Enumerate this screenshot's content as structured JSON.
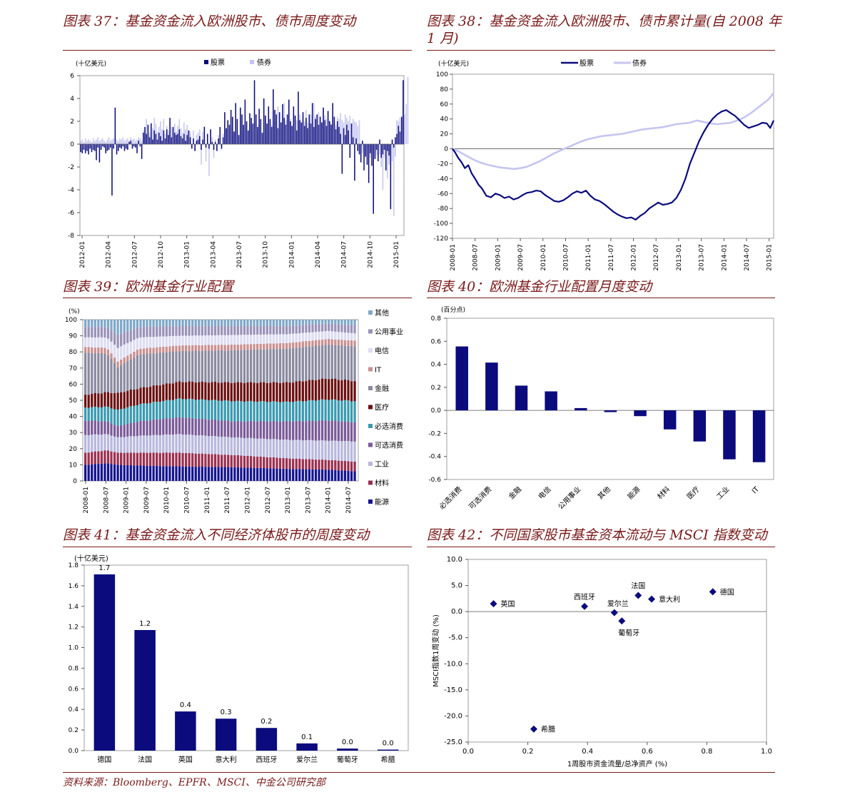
{
  "source": "资料来源：Bloomberg、EPFR、MSCI、中金公司研究部",
  "colors": {
    "navy": "#0b0b7e",
    "lavender": "#c5c5f0",
    "title": "#7a1a1a"
  },
  "chart_data": [
    {
      "id": "c37",
      "type": "bar",
      "title": "图表 37：基金资金流入欧洲股市、债市周度变动",
      "ylabel": "(十亿美元)",
      "ylim": [
        -8,
        6
      ],
      "yticks": [
        -8,
        -6,
        -4,
        -2,
        0,
        2,
        4,
        6
      ],
      "xticks": [
        "2012-01",
        "2012-04",
        "2012-07",
        "2012-10",
        "2013-01",
        "2013-04",
        "2013-07",
        "2013-10",
        "2014-01",
        "2014-04",
        "2014-07",
        "2014-10",
        "2015-01"
      ],
      "legend": [
        "股票",
        "债券"
      ],
      "series": [
        {
          "name": "股票",
          "values": [
            -0.7,
            -0.8,
            -0.5,
            -0.8,
            -0.6,
            -0.9,
            -0.4,
            -0.7,
            -0.5,
            -0.6,
            -1.4,
            -0.3,
            -1.6,
            -0.5,
            -0.2,
            -0.3,
            -0.8,
            -0.6,
            -0.5,
            -0.3,
            -4.5,
            -0.4,
            3.2,
            -0.9,
            -0.6,
            -0.3,
            -0.4,
            -0.2,
            -0.6,
            -0.4,
            -0.5,
            0.2,
            0.3,
            -0.4,
            -0.2,
            -0.3,
            -0.8,
            0.3,
            -0.2,
            -1.3,
            1.0,
            1.5,
            0.9,
            1.7,
            0.6,
            1.8,
            0.4,
            1.2,
            0.9,
            0.4,
            1.0,
            0.7,
            0.3,
            1.2,
            0.5,
            1.3,
            0.8,
            2.3,
            0.6,
            1.5,
            1.0,
            0.8,
            0.9,
            1.3,
            0.7,
            0.5,
            0.9,
            0.3,
            0.8,
            1.2,
            0.6,
            -0.4,
            0.5,
            -0.6,
            0.3,
            0.4,
            0.7,
            -0.5,
            0.4,
            1.5,
            -0.3,
            0.9,
            -0.4,
            1.3,
            0.2,
            -0.5,
            0.2,
            -0.6,
            0.5,
            1.5,
            -0.4,
            0.6,
            2.8,
            1.4,
            2.1,
            1.7,
            3.0,
            2.4,
            1.1,
            3.6,
            2.2,
            0.8,
            3.2,
            2.6,
            1.7,
            3.9,
            2.0,
            1.2,
            2.7,
            2.3,
            1.8,
            5.6,
            2.6,
            1.5,
            3.1,
            2.2,
            1.0,
            4.0,
            2.5,
            1.8,
            3.3,
            2.2,
            1.5,
            4.8,
            3.0,
            2.6,
            1.4,
            2.8,
            1.9,
            3.5,
            2.3,
            1.7,
            2.6,
            3.9,
            2.0,
            1.6,
            3.3,
            2.5,
            1.2,
            4.6,
            2.1,
            1.9,
            2.8,
            1.6,
            2.3,
            1.4,
            2.6,
            1.8,
            3.6,
            1.5,
            2.2,
            2.6,
            1.7,
            2.4,
            1.9,
            3.2,
            2.1,
            1.6,
            2.9,
            2.0,
            1.7,
            3.6,
            2.4,
            1.3,
            2.0,
            1.5,
            0.9,
            -2.6,
            1.4,
            0.8,
            1.7,
            1.2,
            -1.2,
            1.8,
            0.6,
            -3.2,
            0.5,
            -0.6,
            -0.9,
            -1.6,
            0.3,
            -2.3,
            -1.1,
            -1.8,
            -3.4,
            -0.8,
            -1.9,
            -6.1,
            -1.3,
            -0.5,
            -1.5,
            0.4,
            -1.2,
            -0.9,
            -0.5,
            -2.3,
            -0.6,
            -1.0,
            -5.7,
            0.4,
            -0.3,
            0.6,
            0.9,
            1.6,
            1.1,
            2.4,
            5.6
          ]
        },
        {
          "name": "债券",
          "values": [
            0.3,
            0.4,
            0.2,
            0.5,
            0.3,
            0.4,
            0.3,
            0.2,
            0.5,
            0.3,
            0.4,
            0.6,
            0.3,
            0.4,
            0.5,
            0.3,
            0.2,
            0.4,
            0.6,
            0.3,
            0.4,
            0.5,
            0.7,
            0.4,
            0.3,
            0.5,
            0.4,
            0.6,
            0.3,
            0.4,
            0.5,
            0.3,
            0.6,
            0.4,
            0.5,
            0.3,
            0.4,
            0.6,
            0.5,
            0.3,
            1.2,
            0.9,
            2.2,
            1.6,
            1.0,
            1.9,
            1.4,
            2.3,
            1.8,
            1.1,
            1.5,
            2.0,
            1.3,
            2.2,
            0.9,
            1.6,
            1.2,
            2.0,
            1.5,
            1.3,
            1.8,
            1.1,
            1.6,
            2.2,
            1.4,
            1.0,
            1.9,
            1.3,
            1.7,
            1.2,
            1.1,
            -0.3,
            1.2,
            -0.6,
            0.8,
            1.0,
            1.3,
            -1.8,
            1.1,
            1.6,
            -1.5,
            0.9,
            -2.8,
            1.2,
            0.6,
            -1.2,
            0.4,
            -0.6,
            0.8,
            1.4,
            -0.5,
            0.9,
            1.7,
            1.3,
            1.6,
            1.2,
            1.4,
            0.8,
            1.1,
            2.1,
            1.3,
            0.6,
            1.8,
            1.2,
            1.0,
            1.5,
            1.2,
            0.8,
            1.6,
            1.3,
            1.1,
            1.9,
            1.5,
            1.2,
            1.7,
            1.3,
            0.9,
            1.8,
            1.4,
            1.1,
            1.5,
            1.2,
            1.7,
            2.8,
            2.0,
            1.5,
            3.3,
            1.8,
            1.4,
            2.5,
            3.6,
            2.1,
            1.9,
            3.1,
            2.2,
            1.6,
            2.7,
            2.4,
            2.1,
            2.0,
            2.6,
            1.8,
            2.4,
            2.0,
            3.0,
            1.9,
            2.3,
            2.6,
            2.0,
            3.6,
            2.4,
            2.1,
            2.8,
            2.3,
            1.9,
            3.2,
            2.5,
            2.2,
            2.9,
            2.1,
            1.8,
            2.5,
            2.0,
            1.7,
            2.4,
            2.2,
            2.7,
            2.1,
            1.9,
            2.6,
            2.3,
            2.0,
            2.5,
            1.8,
            2.2,
            2.0,
            1.9,
            1.6,
            2.1,
            -0.6,
            -0.8,
            -0.5,
            -1.0,
            -0.3,
            -0.9,
            -1.2,
            -0.6,
            -1.4,
            -0.8,
            -1.0,
            -0.5,
            -0.9,
            -2.0,
            -4.0,
            -1.2,
            -0.9,
            -3.0,
            -1.8,
            -1.0,
            -1.5,
            -6.3,
            -1.1,
            2.1,
            2.0,
            2.3,
            1.5,
            2.2,
            2.6,
            3.5,
            5.9
          ]
        }
      ]
    },
    {
      "id": "c38",
      "type": "line",
      "title": "图表 38：基金资金流入欧洲股市、债市累计量(自 2008 年 1 月)",
      "ylabel": "(十亿美元)",
      "ylim": [
        -120,
        100
      ],
      "yticks": [
        -120,
        -100,
        -80,
        -60,
        -40,
        -20,
        0,
        20,
        40,
        60,
        80,
        100
      ],
      "xticks": [
        "2008-01",
        "2008-07",
        "2009-01",
        "2009-07",
        "2010-01",
        "2010-07",
        "2011-01",
        "2011-07",
        "2012-01",
        "2012-07",
        "2013-01",
        "2013-07",
        "2014-01",
        "2014-07",
        "2015-01"
      ],
      "legend": [
        "股票",
        "债券"
      ],
      "series": [
        {
          "name": "股票",
          "x": [
            0,
            0.12,
            0.25,
            0.4,
            0.55,
            0.7,
            0.85,
            1.0,
            1.15,
            1.3,
            1.5,
            1.7,
            1.9,
            2.1,
            2.3,
            2.5,
            2.7,
            2.9,
            3.1,
            3.3,
            3.5,
            3.7,
            3.9,
            4.1,
            4.3,
            4.5,
            4.7,
            4.9,
            5.1,
            5.3,
            5.5,
            5.7,
            5.9,
            6.1,
            6.3,
            6.5,
            6.7,
            6.9,
            7.1,
            7.3,
            7.5,
            7.7,
            7.9,
            8.1,
            8.3,
            8.5,
            8.7,
            8.9,
            9.1,
            9.3,
            9.5,
            9.7,
            9.9,
            10.1,
            10.3,
            10.5,
            10.7,
            10.9,
            11.1,
            11.3,
            11.5,
            11.7,
            11.9,
            12.1,
            12.3,
            12.5,
            12.7,
            12.9,
            13.1,
            13.3,
            13.5,
            13.7,
            13.9,
            14.05,
            14.2
          ],
          "values": [
            0,
            -5,
            -12,
            -18,
            -26,
            -22,
            -33,
            -40,
            -48,
            -53,
            -63,
            -65,
            -60,
            -62,
            -66,
            -64,
            -68,
            -66,
            -62,
            -59,
            -58,
            -56,
            -57,
            -62,
            -66,
            -70,
            -71,
            -69,
            -65,
            -60,
            -57,
            -59,
            -56,
            -63,
            -68,
            -70,
            -74,
            -79,
            -84,
            -88,
            -91,
            -93,
            -92,
            -95,
            -90,
            -86,
            -80,
            -76,
            -72,
            -75,
            -74,
            -72,
            -66,
            -55,
            -40,
            -20,
            -5,
            10,
            22,
            32,
            40,
            46,
            50,
            52,
            48,
            44,
            38,
            32,
            28,
            30,
            32,
            35,
            34,
            28,
            38
          ]
        },
        {
          "name": "债券",
          "x": [
            0,
            0.3,
            0.6,
            0.9,
            1.2,
            1.5,
            1.8,
            2.1,
            2.4,
            2.7,
            3.0,
            3.3,
            3.6,
            3.9,
            4.2,
            4.5,
            4.8,
            5.1,
            5.4,
            5.7,
            6.0,
            6.3,
            6.6,
            6.9,
            7.2,
            7.5,
            7.8,
            8.1,
            8.4,
            8.7,
            9.0,
            9.3,
            9.6,
            9.9,
            10.2,
            10.5,
            10.8,
            11.1,
            11.4,
            11.7,
            12.0,
            12.3,
            12.6,
            12.9,
            13.2,
            13.5,
            13.8,
            14.0,
            14.2
          ],
          "values": [
            0,
            -4,
            -9,
            -14,
            -18,
            -21,
            -23,
            -25,
            -26,
            -27,
            -26,
            -24,
            -20,
            -16,
            -11,
            -6,
            -2,
            2,
            6,
            10,
            13,
            15,
            17,
            18,
            19,
            20,
            22,
            24,
            26,
            27,
            28,
            29,
            31,
            33,
            34,
            35,
            38,
            36,
            34,
            33,
            34,
            35,
            38,
            42,
            48,
            55,
            62,
            67,
            75
          ]
        }
      ]
    },
    {
      "id": "c39",
      "type": "area",
      "title": "图表 39：欧洲基金行业配置",
      "ylabel": "(%)",
      "ylim": [
        0,
        100
      ],
      "yticks": [
        0,
        10,
        20,
        30,
        40,
        50,
        60,
        70,
        80,
        90,
        100
      ],
      "xticks": [
        "2008-01",
        "2008-07",
        "2009-01",
        "2009-07",
        "2010-01",
        "2010-07",
        "2011-01",
        "2011-07",
        "2012-01",
        "2012-07",
        "2013-01",
        "2013-07",
        "2014-01",
        "2014-07"
      ],
      "legend": [
        "其他",
        "公用事业",
        "电信",
        "IT",
        "金融",
        "医疗",
        "必选消费",
        "可选消费",
        "工业",
        "材料",
        "能源"
      ],
      "series_colors": [
        "#7fa8c8",
        "#9a92b8",
        "#dcdcf2",
        "#c99090",
        "#8a8aa0",
        "#6b1010",
        "#3a9ab0",
        "#7a5a98",
        "#b8b8de",
        "#9a3050",
        "#141490"
      ],
      "stack_order_bottom_up": [
        "能源",
        "材料",
        "工业",
        "可选消费",
        "必选消费",
        "医疗",
        "金融",
        "IT",
        "电信",
        "公用事业",
        "其他"
      ],
      "anchors": {
        "t": [
          0,
          0.08,
          0.12,
          0.2,
          0.35,
          0.55,
          0.75,
          0.9,
          1.0
        ],
        "能源": [
          10,
          11,
          10,
          9.5,
          9,
          8.5,
          7.5,
          7,
          6
        ],
        "材料": [
          7.5,
          8,
          7.5,
          8,
          8.5,
          7.5,
          6.5,
          6,
          6
        ],
        "工业": [
          11,
          10,
          9.5,
          10.5,
          11.5,
          11,
          11.5,
          12,
          12.5
        ],
        "可选消费": [
          9,
          8,
          7,
          9,
          10.5,
          10,
          11.5,
          12.5,
          12
        ],
        "必选消费": [
          8,
          9,
          10,
          10.5,
          11.5,
          12.5,
          12,
          13,
          13
        ],
        "医疗": [
          8,
          9,
          10.5,
          10,
          10.5,
          11.5,
          12,
          13,
          12.5
        ],
        "金融": [
          26,
          24,
          16,
          21,
          19,
          20,
          21,
          21,
          21.5
        ],
        "IT": [
          3.5,
          3.5,
          3.5,
          3.5,
          3.5,
          3.5,
          3.5,
          3.5,
          3.5
        ],
        "电信": [
          6,
          6.5,
          8.5,
          7,
          6,
          6,
          5.5,
          5,
          4.5
        ],
        "公用事业": [
          6.5,
          6.5,
          8,
          6.5,
          6,
          5.5,
          5,
          4.5,
          5
        ],
        "其他": [
          4.5,
          4.5,
          9.5,
          4.5,
          4,
          4,
          4,
          2.5,
          3.5
        ]
      }
    },
    {
      "id": "c40",
      "type": "bar",
      "title": "图表 40：欧洲基金行业配置月度变动",
      "ylabel": "(百分点)",
      "ylim": [
        -0.6,
        0.8
      ],
      "yticks": [
        -0.6,
        -0.4,
        -0.2,
        0.0,
        0.2,
        0.4,
        0.6,
        0.8
      ],
      "categories": [
        "必选消费",
        "可选消费",
        "金融",
        "电信",
        "公用事业",
        "其他",
        "能源",
        "材料",
        "医疗",
        "工业",
        "IT"
      ],
      "values": [
        0.555,
        0.415,
        0.215,
        0.165,
        0.02,
        -0.015,
        -0.05,
        -0.165,
        -0.27,
        -0.425,
        -0.45
      ]
    },
    {
      "id": "c41",
      "type": "bar",
      "title": "图表 41：基金资金流入不同经济体股市的周度变动",
      "ylabel": "(十亿美元)",
      "ylim": [
        0,
        1.8
      ],
      "yticks": [
        0.0,
        0.2,
        0.4,
        0.6,
        0.8,
        1.0,
        1.2,
        1.4,
        1.6,
        1.8
      ],
      "categories": [
        "德国",
        "法国",
        "英国",
        "意大利",
        "西班牙",
        "爱尔兰",
        "葡萄牙",
        "希腊"
      ],
      "values": [
        1.71,
        1.17,
        0.38,
        0.31,
        0.22,
        0.07,
        0.02,
        0.01
      ],
      "data_labels": [
        "1.7",
        "1.2",
        "0.4",
        "0.3",
        "0.2",
        "0.1",
        "0.0",
        "0.0"
      ]
    },
    {
      "id": "c42",
      "type": "scatter",
      "title": "图表 42：不同国家股市基金资本流动与 MSCI 指数变动",
      "xlabel": "1周股市资金流量/总净资产 (%)",
      "ylabel": "MSCI指数1周变动 (%)",
      "xlim": [
        0.0,
        1.0
      ],
      "ylim": [
        -25.0,
        10.0
      ],
      "xticks": [
        "0.0",
        "0.2",
        "0.4",
        "0.6",
        "0.8",
        "1.0"
      ],
      "yticks": [
        "10.0",
        "5.0",
        "0.0",
        "-5.0",
        "-10.0",
        "-15.0",
        "-20.0",
        "-25.0"
      ],
      "points": [
        {
          "label": "英国",
          "x": 0.085,
          "y": 1.5,
          "pos": "right"
        },
        {
          "label": "西班牙",
          "x": 0.39,
          "y": 1.0,
          "pos": "above"
        },
        {
          "label": "爱尔兰",
          "x": 0.49,
          "y": -0.2,
          "pos": "aboveright"
        },
        {
          "label": "葡萄牙",
          "x": 0.515,
          "y": -1.8,
          "pos": "below"
        },
        {
          "label": "法国",
          "x": 0.57,
          "y": 3.1,
          "pos": "above"
        },
        {
          "label": "意大利",
          "x": 0.615,
          "y": 2.4,
          "pos": "right"
        },
        {
          "label": "德国",
          "x": 0.82,
          "y": 3.8,
          "pos": "right"
        },
        {
          "label": "希腊",
          "x": 0.22,
          "y": -22.5,
          "pos": "right"
        }
      ]
    }
  ]
}
